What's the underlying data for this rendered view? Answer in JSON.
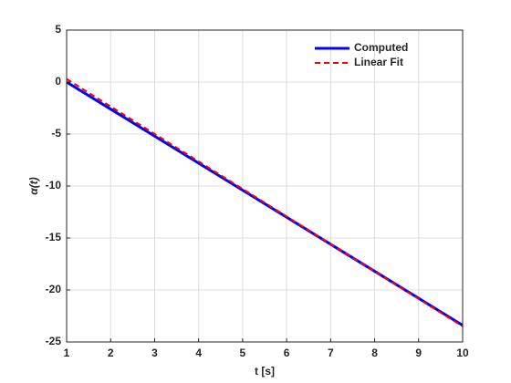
{
  "chart_data": {
    "type": "line",
    "xlabel": "t [s]",
    "ylabel": "α(t)",
    "x": [
      1,
      10
    ],
    "series": [
      {
        "name": "Computed",
        "color": "#0000ff",
        "style": "solid",
        "values": [
          0,
          -23.4
        ]
      },
      {
        "name": "Linear Fit",
        "color": "#ff0000",
        "style": "dashed",
        "values": [
          0.3,
          -23.5
        ]
      }
    ],
    "xlim": [
      1,
      10
    ],
    "xticks": [
      1,
      2,
      3,
      4,
      5,
      6,
      7,
      8,
      9,
      10
    ],
    "ylim": [
      -25,
      5
    ],
    "yticks": [
      -25,
      -20,
      -15,
      -10,
      -5,
      0,
      5
    ],
    "grid": true,
    "legend": "top-right"
  }
}
